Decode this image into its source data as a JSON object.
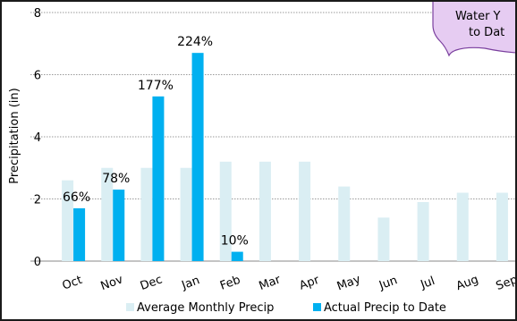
{
  "chart_data": {
    "type": "bar",
    "ylabel": "Precipitation (in)",
    "ylim": [
      0,
      8
    ],
    "yticks": [
      0,
      2,
      4,
      6,
      8
    ],
    "grid": true,
    "legend_position": "bottom",
    "categories": [
      "Oct",
      "Nov",
      "Dec",
      "Jan",
      "Feb",
      "Mar",
      "Apr",
      "May",
      "Jun",
      "Jul",
      "Aug",
      "Sep"
    ],
    "series": [
      {
        "name": "Average Monthly Precip",
        "color": "#daeef3",
        "values": [
          2.6,
          3.0,
          3.0,
          3.0,
          3.2,
          3.2,
          3.2,
          2.4,
          1.4,
          1.9,
          2.2,
          2.2
        ]
      },
      {
        "name": "Actual Precip to Date",
        "color": "#00b0f0",
        "values": [
          1.7,
          2.3,
          5.3,
          6.7,
          0.3,
          null,
          null,
          null,
          null,
          null,
          null,
          null
        ]
      }
    ],
    "data_labels": [
      "66%",
      "78%",
      "177%",
      "224%",
      "10%"
    ],
    "annotation": {
      "line1": "Water Y",
      "line2": "to Dat",
      "fill": "#e6ccf2",
      "border": "#7a3f9e"
    }
  }
}
